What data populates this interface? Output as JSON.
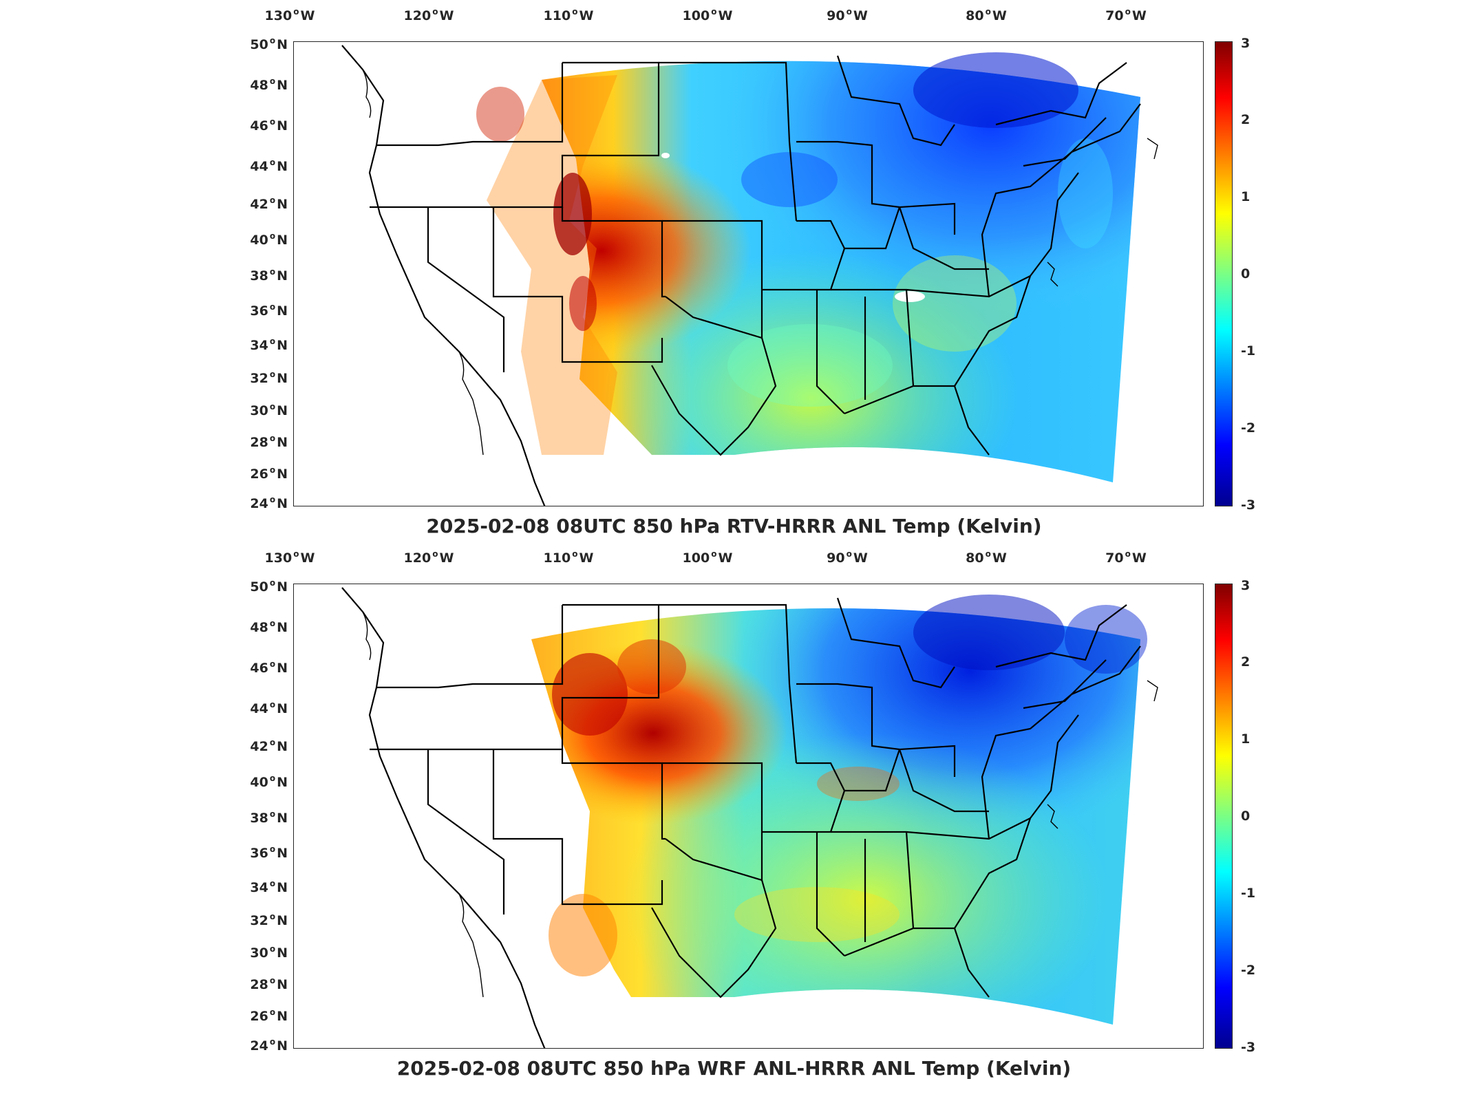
{
  "panels": [
    {
      "title": "2025-02-08 08UTC 850 hPa RTV-HRRR ANL Temp (Kelvin)",
      "variant": "rtv"
    },
    {
      "title": "2025-02-08 08UTC 850 hPa WRF ANL-HRRR ANL Temp (Kelvin)",
      "variant": "wrf"
    }
  ],
  "lon_labels": [
    "130",
    "120",
    "110",
    "100",
    "90",
    "80",
    "70"
  ],
  "lon_suffix": "W",
  "lat_labels": [
    "50",
    "48",
    "46",
    "44",
    "42",
    "40",
    "38",
    "36",
    "34",
    "32",
    "30",
    "28",
    "26",
    "24"
  ],
  "lat_suffix": "N",
  "colorbar": {
    "ticks": [
      "3",
      "2",
      "1",
      "0",
      "-1",
      "-2",
      "-3"
    ],
    "range": [
      -3,
      3
    ],
    "colormap": "jet",
    "colors": [
      "#00008f",
      "#0000ff",
      "#00ffff",
      "#ffff00",
      "#ff0000",
      "#800000"
    ]
  },
  "colors": {
    "state_lines": "#000000",
    "frame": "#262626",
    "missing": "#ffffff"
  }
}
